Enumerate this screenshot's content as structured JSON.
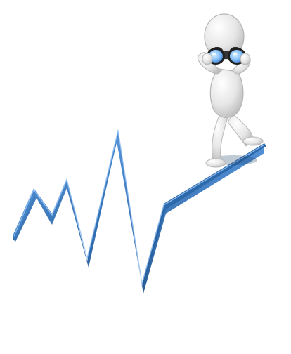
{
  "illustration": {
    "subject": "figure-with-binoculars-on-trend-line",
    "line_color": "#2f6fb3",
    "line_highlight": "#5f9be0",
    "line_shadow": "#1d4f86",
    "figure_color": "#e8e8e8",
    "figure_shade": "#c9c9c9",
    "binocular_body": "#2a2a2a",
    "binocular_lens": "#8ec7ff"
  }
}
